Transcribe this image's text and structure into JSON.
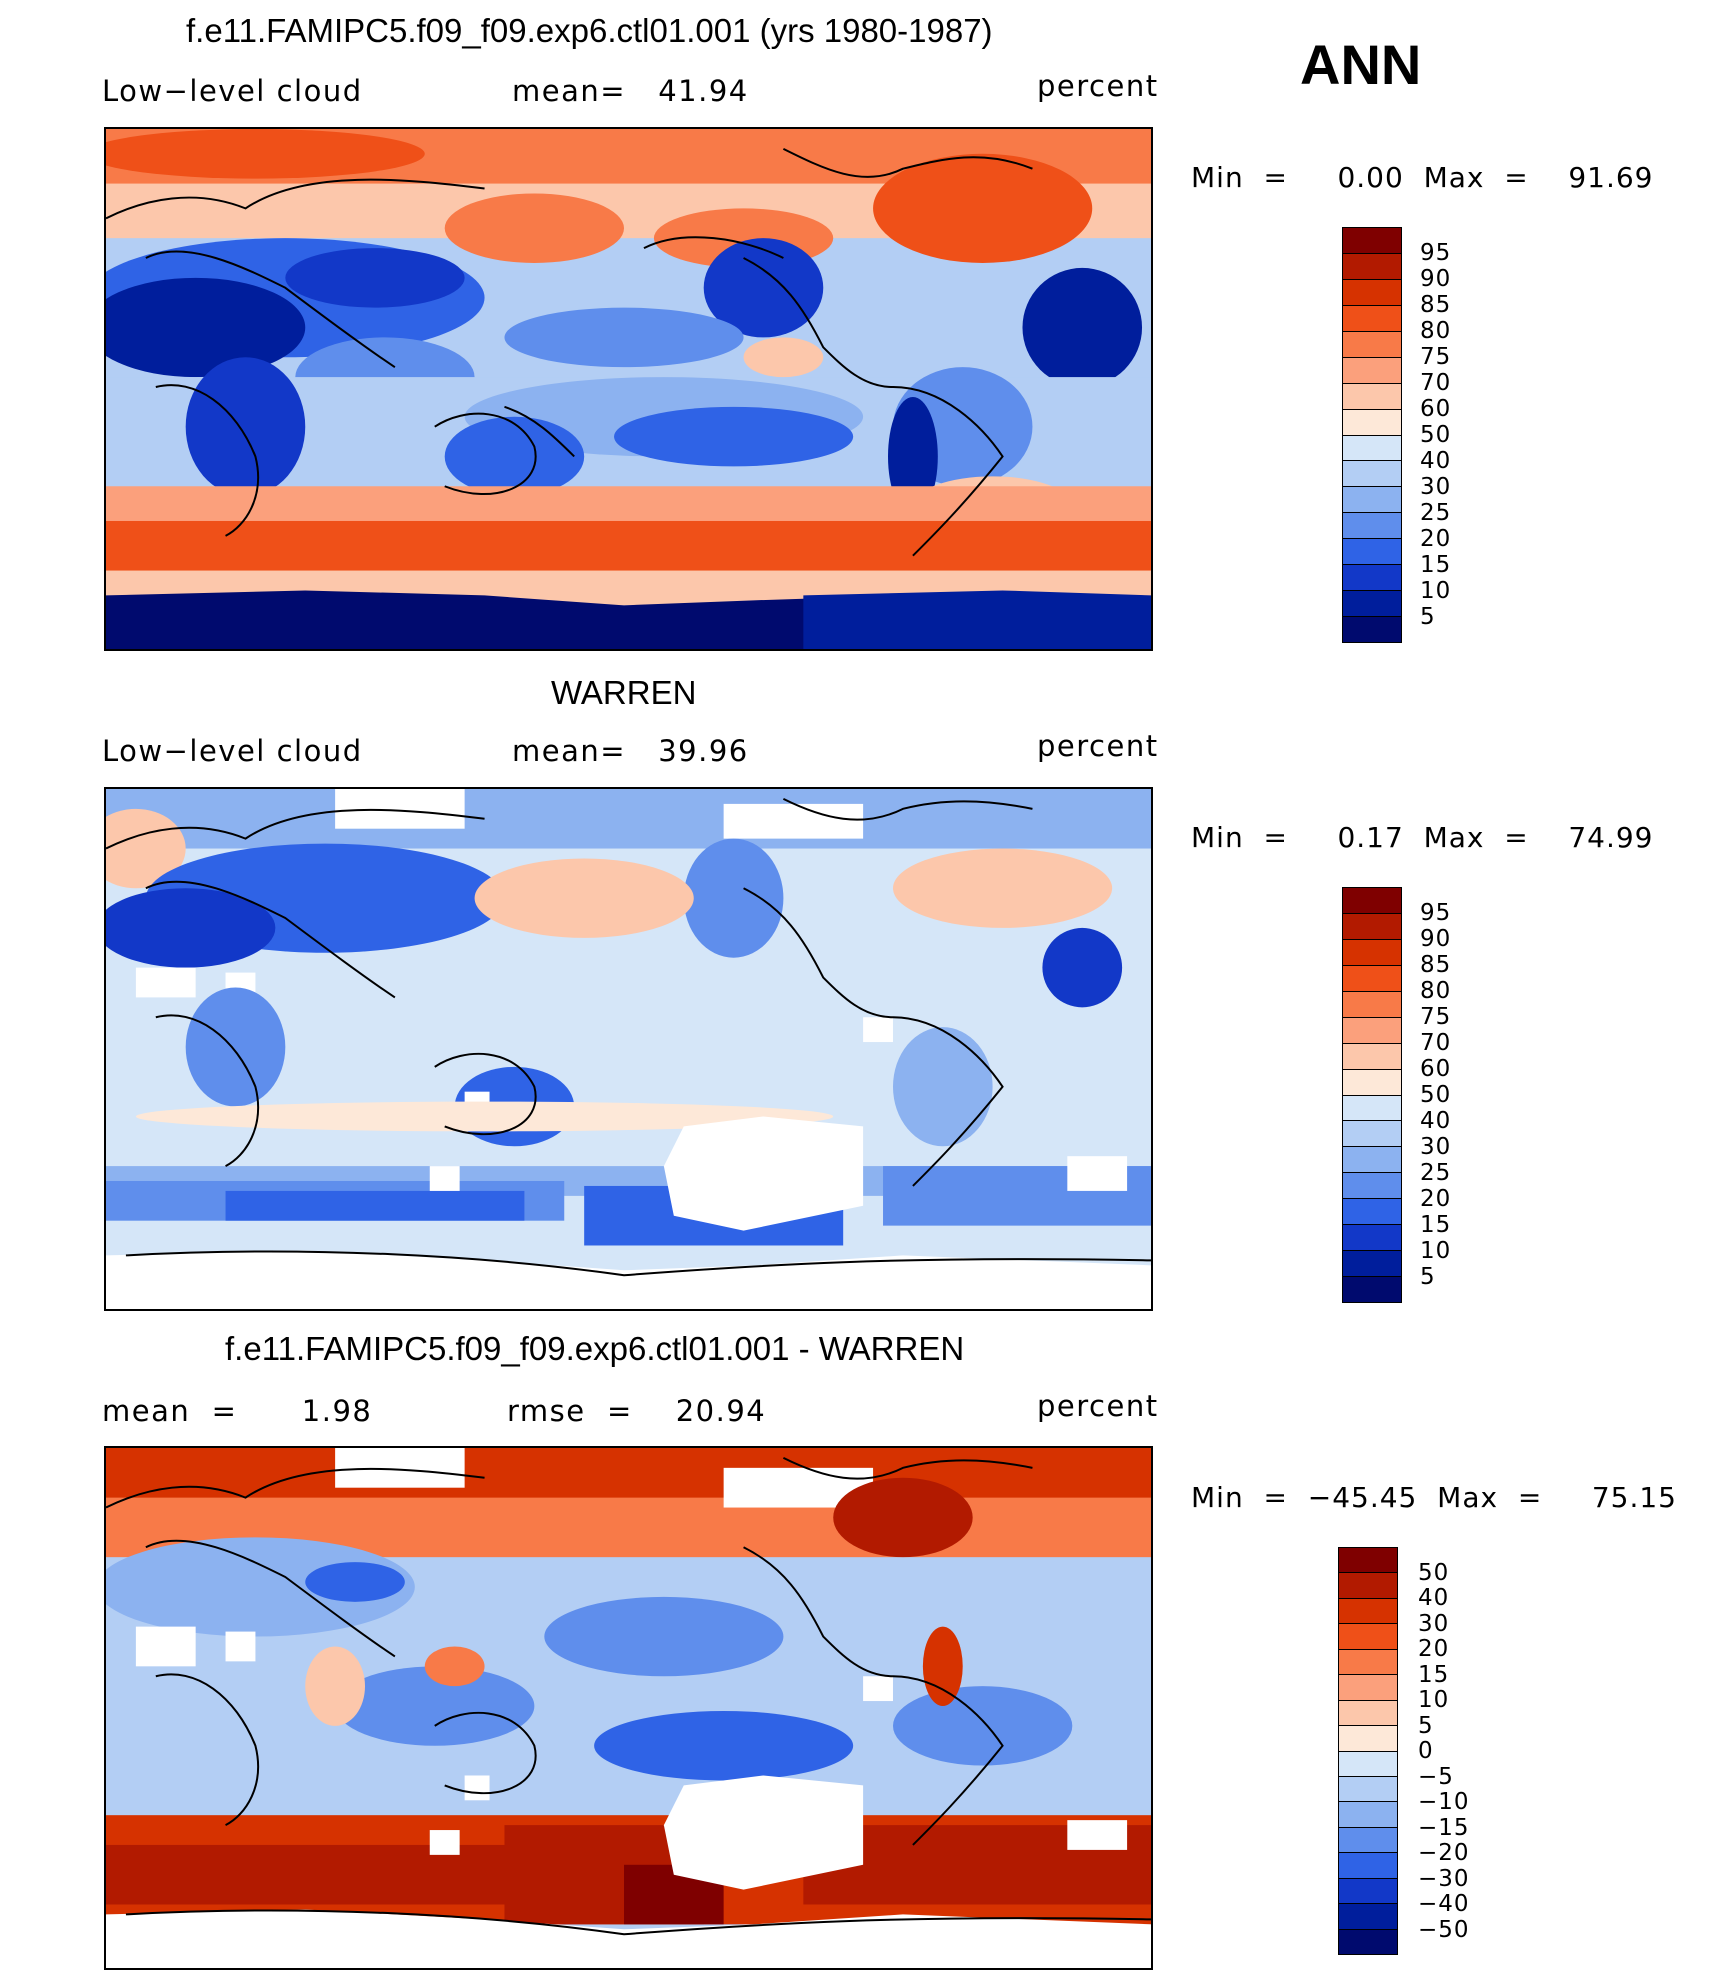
{
  "season": "ANN",
  "panels": [
    {
      "title": "f.e11.FAMIPC5.f09_f09.exp6.ctl01.001 (yrs 1980-1987)",
      "left_label": "Low−level cloud",
      "center_label": "mean=   41.94",
      "units": "percent",
      "minmax": "Min  =     0.00  Max  =    91.69",
      "colorbar_labels": [
        "95",
        "90",
        "85",
        "80",
        "75",
        "70",
        "60",
        "50",
        "40",
        "30",
        "25",
        "20",
        "15",
        "10",
        "5"
      ],
      "palette": [
        "#7f0000",
        "#b21a00",
        "#d63200",
        "#ef5018",
        "#f87a48",
        "#fba07c",
        "#fcc7ab",
        "#fde8d8",
        "#d5e6f8",
        "#b3cef4",
        "#8cb2f0",
        "#5f8eec",
        "#2f63e6",
        "#1238c8",
        "#001e9c",
        "#000a6e"
      ]
    },
    {
      "title": "WARREN",
      "left_label": "Low−level cloud",
      "center_label": "mean=   39.96",
      "units": "percent",
      "minmax": "Min  =     0.17  Max  =    74.99",
      "colorbar_labels": [
        "95",
        "90",
        "85",
        "80",
        "75",
        "70",
        "60",
        "50",
        "40",
        "30",
        "25",
        "20",
        "15",
        "10",
        "5"
      ],
      "palette": [
        "#7f0000",
        "#b21a00",
        "#d63200",
        "#ef5018",
        "#f87a48",
        "#fba07c",
        "#fcc7ab",
        "#fde8d8",
        "#d5e6f8",
        "#b3cef4",
        "#8cb2f0",
        "#5f8eec",
        "#2f63e6",
        "#1238c8",
        "#001e9c",
        "#000a6e"
      ]
    },
    {
      "title": "f.e11.FAMIPC5.f09_f09.exp6.ctl01.001 - WARREN",
      "left_label": "mean  =      1.98",
      "center_label": "rmse  =    20.94",
      "units": "percent",
      "minmax": "Min  =  −45.45  Max  =     75.15",
      "colorbar_labels": [
        "50",
        "40",
        "30",
        "20",
        "15",
        "10",
        "5",
        "0",
        "−5",
        "−10",
        "−15",
        "−20",
        "−30",
        "−40",
        "−50"
      ],
      "palette": [
        "#7f0000",
        "#b21a00",
        "#d63200",
        "#ef5018",
        "#f87a48",
        "#fba07c",
        "#fcc7ab",
        "#fde8d8",
        "#d5e6f8",
        "#b3cef4",
        "#8cb2f0",
        "#5f8eec",
        "#2f63e6",
        "#1238c8",
        "#001e9c",
        "#000a6e"
      ]
    }
  ]
}
